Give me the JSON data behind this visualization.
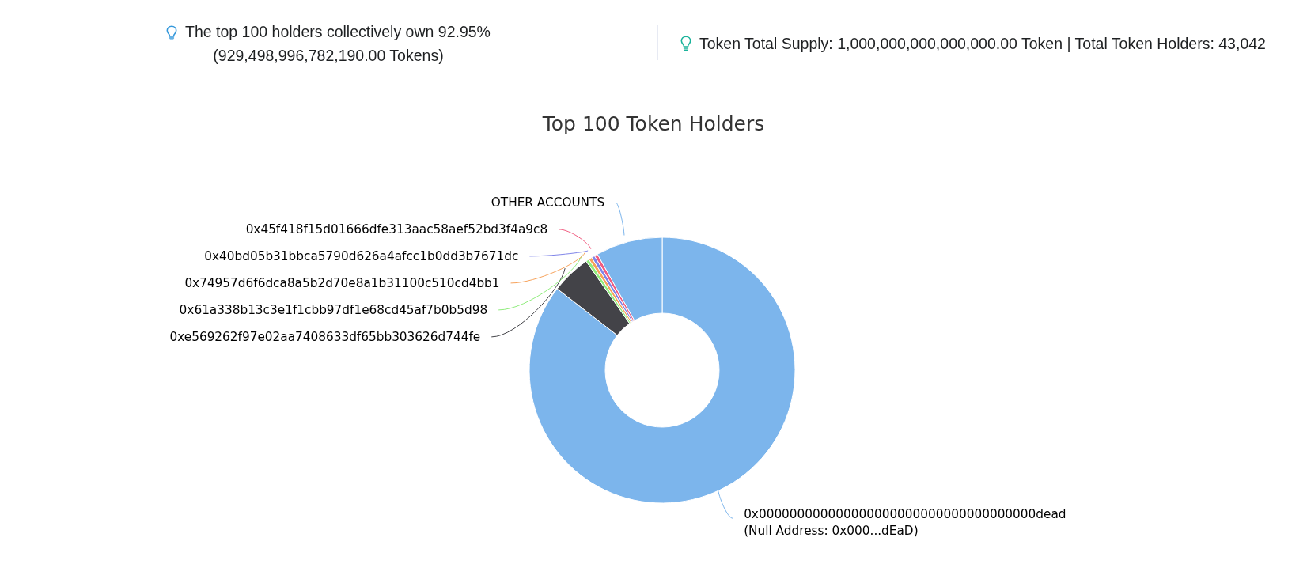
{
  "chart_data": {
    "type": "donut",
    "title": "Top 100 Token Holders",
    "annotations": [
      "The top 100 holders collectively own 92.95% (929,498,996,782,190.00 Tokens)",
      "Token Total Supply: 1,000,000,000,000,000.00 Token | Total Token Holders: 43,042"
    ],
    "categories": [
      "0x000000000000000000000000000000000000dead\n(Null Address: 0x000...dEaD)",
      "0xe569262f97e02aa7408633df65bb303626d744fe",
      "0x61a338b13c3e1f1cbb97df1e68cd45af7b0b5d98",
      "0x74957d6f6dca8a5b2d70e8a1b31100c510cd4bb1",
      "0x40bd05b31bbca5790d626a4afcc1b0dd3b7671dc",
      "0x45f418f15d01666dfe313aac58aef52bd3f4a9c8",
      "OTHER ACCOUNTS"
    ],
    "values": [
      85.5,
      4.8,
      0.4,
      0.4,
      0.4,
      0.4,
      8.1
    ],
    "colors": [
      "#7cb5ec",
      "#434348",
      "#90ed7d",
      "#f7a35c",
      "#8085e9",
      "#f15c80",
      "#7cb5ec"
    ]
  }
}
